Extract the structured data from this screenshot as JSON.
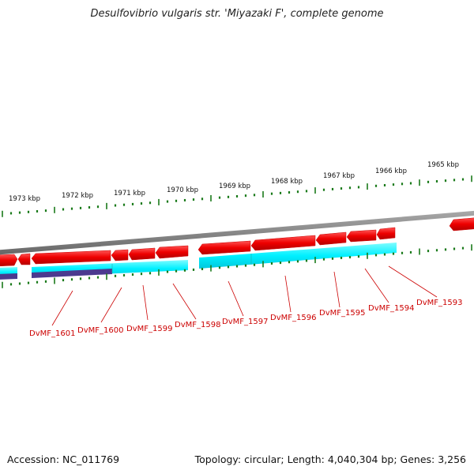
{
  "title": "Desulfovibrio vulgaris str. 'Miyazaki F', complete genome",
  "footer": {
    "accession": "Accession: NC_011769",
    "topology": "Topology: circular; Length: 4,040,304 bp; Genes: 3,256"
  },
  "colors": {
    "forward_gene": "#ff0000",
    "cds_band": "#00ffff",
    "cds_band_dark": "#4b3a8f",
    "backbone": "#808080",
    "tick": "#1a7a1a",
    "label": "#cc0000"
  },
  "kbp_scale": [
    "1973 kbp",
    "1972 kbp",
    "1971 kbp",
    "1970 kbp",
    "1969 kbp",
    "1968 kbp",
    "1967 kbp",
    "1966 kbp",
    "1965 kbp"
  ],
  "gene_labels": [
    "DvMF_1601",
    "DvMF_1600",
    "DvMF_1599",
    "DvMF_1598",
    "DvMF_1597",
    "DvMF_1596",
    "DvMF_1595",
    "DvMF_1594",
    "DvMF_1593"
  ]
}
